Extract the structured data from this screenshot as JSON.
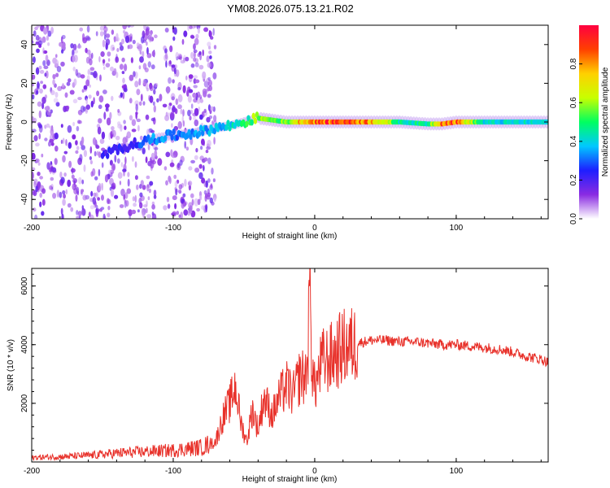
{
  "title": "YM08.2026.075.13.21.R02",
  "colors": {
    "signal": "#e8312a",
    "background_dots": "#8a4fe0",
    "axes": "#000000"
  },
  "chart_data": [
    {
      "type": "heatmap",
      "name": "spectrogram",
      "xlabel": "Height of straight line (km)",
      "ylabel": "Frequency (Hz)",
      "xlim": [
        -200,
        165
      ],
      "ylim": [
        -50,
        50
      ],
      "xticks": [
        -200,
        -100,
        0,
        100
      ],
      "xtick_labels": [
        "-200",
        "-100",
        "0",
        "100"
      ],
      "yticks": [
        -40,
        -20,
        0,
        20,
        40
      ],
      "ytick_labels": [
        "-40",
        "-20",
        "0",
        "20",
        "40"
      ],
      "ridge": {
        "x": [
          -150,
          -140,
          -130,
          -120,
          -110,
          -100,
          -90,
          -80,
          -70,
          -60,
          -50,
          -40,
          -30,
          -20,
          -10,
          0,
          20,
          40,
          60,
          80,
          90,
          100,
          120,
          140,
          165
        ],
        "freq": [
          -18,
          -14,
          -12,
          -10,
          -8,
          -7,
          -6,
          -5,
          -3,
          -2,
          0,
          2,
          1,
          0,
          0,
          0,
          0,
          0,
          0,
          -1,
          -1,
          0,
          0,
          0,
          0
        ],
        "amplitude": [
          0.2,
          0.25,
          0.2,
          0.3,
          0.35,
          0.3,
          0.3,
          0.35,
          0.35,
          0.4,
          0.45,
          0.6,
          0.55,
          0.55,
          0.75,
          0.85,
          0.9,
          0.8,
          0.45,
          0.45,
          0.9,
          0.85,
          0.4,
          0.4,
          0.4
        ]
      },
      "noise_region": [
        -200,
        -70
      ],
      "colorbar": {
        "label": "Normalized spectral amplitude",
        "range": [
          0.0,
          1.0
        ],
        "ticks": [
          0.0,
          0.2,
          0.4,
          0.6,
          0.8
        ],
        "tick_labels": [
          "0.0",
          "0.2",
          "0.4",
          "0.6",
          "0.8"
        ],
        "stops": [
          "#ffffff",
          "#8a2be2",
          "#1e1eff",
          "#00c8ff",
          "#00ff60",
          "#c8ff00",
          "#ffd000",
          "#ff4000",
          "#ff0040"
        ]
      }
    },
    {
      "type": "line",
      "name": "snr",
      "xlabel": "Height of straight line (km)",
      "ylabel": "SNR (10 * v/v)",
      "xlim": [
        -200,
        165
      ],
      "ylim": [
        0,
        6600
      ],
      "xticks": [
        -200,
        -100,
        0,
        100
      ],
      "xtick_labels": [
        "-200",
        "-100",
        "0",
        "100"
      ],
      "yticks": [
        2000,
        4000,
        6000
      ],
      "ytick_labels": [
        "2000",
        "4000",
        "6000"
      ],
      "series": [
        {
          "name": "SNR",
          "x": [
            -200,
            -180,
            -160,
            -145,
            -140,
            -120,
            -100,
            -90,
            -80,
            -75,
            -70,
            -65,
            -60,
            -56,
            -52,
            -48,
            -44,
            -40,
            -36,
            -30,
            -25,
            -20,
            -15,
            -10,
            -7,
            -5,
            -3,
            -2,
            0,
            5,
            10,
            15,
            20,
            25,
            30,
            35,
            40,
            50,
            60,
            70,
            80,
            90,
            100,
            110,
            120,
            130,
            140,
            150,
            160,
            165
          ],
          "y": [
            150,
            180,
            220,
            280,
            300,
            350,
            400,
            450,
            500,
            600,
            700,
            1500,
            2000,
            2600,
            1300,
            700,
            1800,
            1100,
            2200,
            1600,
            2200,
            2600,
            2300,
            3000,
            2800,
            3500,
            6500,
            3200,
            2500,
            3400,
            3500,
            3700,
            3900,
            3950,
            4050,
            4100,
            4150,
            4150,
            4100,
            4100,
            4050,
            4000,
            4000,
            3950,
            3900,
            3850,
            3750,
            3600,
            3500,
            3400
          ]
        }
      ]
    }
  ]
}
